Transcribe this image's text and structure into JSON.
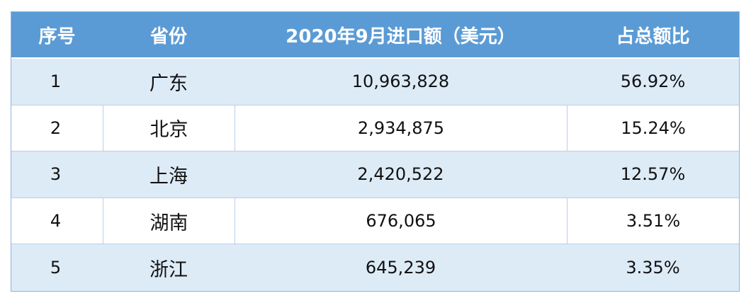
{
  "chart_data": {
    "type": "table",
    "columns": [
      "序号",
      "省份",
      "2020年9月进口额（美元）",
      "占总额比"
    ],
    "rows": [
      {
        "index": "1",
        "province": "广东",
        "amount": "10,963,828",
        "share": "56.92%"
      },
      {
        "index": "2",
        "province": "北京",
        "amount": "2,934,875",
        "share": "15.24%"
      },
      {
        "index": "3",
        "province": "上海",
        "amount": "2,420,522",
        "share": "12.57%"
      },
      {
        "index": "4",
        "province": "湖南",
        "amount": "676,065",
        "share": "3.51%"
      },
      {
        "index": "5",
        "province": "浙江",
        "amount": "645,239",
        "share": "3.35%"
      }
    ],
    "colors": {
      "header_bg": "#5b9bd5",
      "band_bg": "#ddebf7",
      "border": "#8eb4dc"
    }
  }
}
